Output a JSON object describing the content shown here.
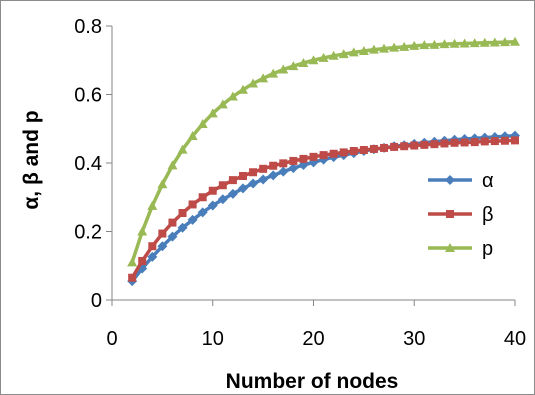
{
  "chart_data": {
    "type": "line",
    "xlabel": "Number of nodes",
    "ylabel": "α, β and p",
    "xlim": [
      0,
      40
    ],
    "ylim": [
      0,
      0.8
    ],
    "xticks": [
      "0",
      "10",
      "20",
      "30",
      "40"
    ],
    "yticks": [
      "0",
      "0.2",
      "0.4",
      "0.6",
      "0.8"
    ],
    "grid": false,
    "legend_position": "right",
    "x": [
      2,
      3,
      4,
      5,
      6,
      7,
      8,
      9,
      10,
      11,
      12,
      13,
      14,
      15,
      16,
      17,
      18,
      19,
      20,
      21,
      22,
      23,
      24,
      25,
      26,
      27,
      28,
      29,
      30,
      31,
      32,
      33,
      34,
      35,
      36,
      37,
      38,
      39,
      40
    ],
    "series": [
      {
        "name": "α",
        "color": "#4a7ebb",
        "marker": "diamond",
        "values": [
          0.055,
          0.092,
          0.126,
          0.157,
          0.185,
          0.211,
          0.234,
          0.256,
          0.276,
          0.294,
          0.31,
          0.326,
          0.34,
          0.352,
          0.364,
          0.375,
          0.385,
          0.394,
          0.402,
          0.41,
          0.417,
          0.423,
          0.429,
          0.435,
          0.44,
          0.444,
          0.449,
          0.452,
          0.456,
          0.459,
          0.462,
          0.465,
          0.468,
          0.47,
          0.472,
          0.474,
          0.476,
          0.478,
          0.48
        ]
      },
      {
        "name": "β",
        "color": "#be4b48",
        "marker": "square",
        "values": [
          0.065,
          0.114,
          0.157,
          0.194,
          0.226,
          0.254,
          0.279,
          0.3,
          0.319,
          0.335,
          0.35,
          0.362,
          0.373,
          0.383,
          0.392,
          0.399,
          0.406,
          0.412,
          0.418,
          0.423,
          0.427,
          0.431,
          0.435,
          0.438,
          0.441,
          0.444,
          0.447,
          0.449,
          0.451,
          0.453,
          0.455,
          0.457,
          0.459,
          0.46,
          0.461,
          0.463,
          0.464,
          0.465,
          0.466
        ]
      },
      {
        "name": "p",
        "color": "#98b954",
        "marker": "triangle",
        "values": [
          0.11,
          0.2,
          0.275,
          0.338,
          0.393,
          0.439,
          0.479,
          0.514,
          0.545,
          0.571,
          0.594,
          0.614,
          0.632,
          0.647,
          0.661,
          0.673,
          0.683,
          0.692,
          0.7,
          0.707,
          0.713,
          0.718,
          0.723,
          0.727,
          0.731,
          0.734,
          0.737,
          0.739,
          0.742,
          0.744,
          0.745,
          0.747,
          0.748,
          0.749,
          0.75,
          0.751,
          0.752,
          0.753,
          0.754
        ]
      }
    ]
  }
}
